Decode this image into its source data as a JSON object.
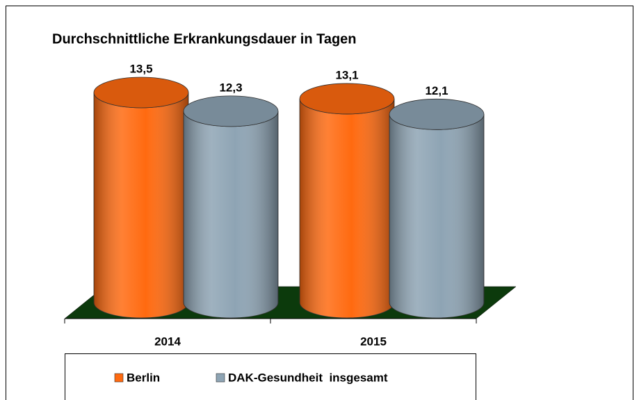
{
  "chart_data": {
    "type": "bar",
    "title": "Durchschnittliche Erkrankungsdauer in Tagen",
    "categories": [
      "2014",
      "2015"
    ],
    "series": [
      {
        "name": "Berlin",
        "color": "#ff6a10",
        "values": [
          13.5,
          13.1
        ],
        "value_labels": [
          "13,5",
          "13,1"
        ]
      },
      {
        "name": "DAK-Gesundheit  insgesamt",
        "color": "#8ea4b4",
        "values": [
          12.3,
          12.1
        ],
        "value_labels": [
          "12,3",
          "12,1"
        ]
      }
    ],
    "legend": "bottom"
  }
}
